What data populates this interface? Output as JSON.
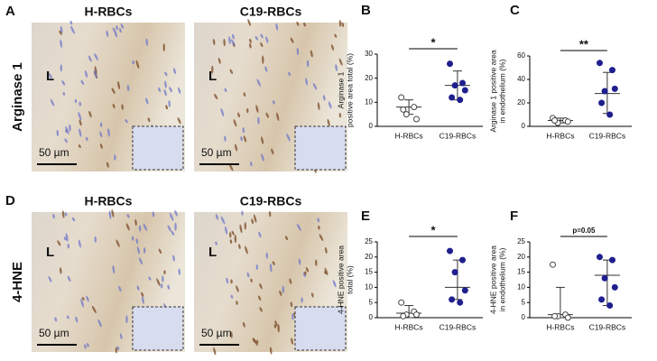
{
  "micrograph_rows": [
    {
      "letter": "A",
      "label": "Arginase 1",
      "images": [
        {
          "title": "H-RBCs",
          "lumen": "L",
          "scale_bar": "50 µm"
        },
        {
          "title": "C19-RBCs",
          "lumen": "L",
          "scale_bar": "50 µm"
        }
      ]
    },
    {
      "letter": "D",
      "label": "4-HNE",
      "images": [
        {
          "title": "H-RBCs",
          "lumen": "L",
          "scale_bar": "50 µm"
        },
        {
          "title": "C19-RBCs",
          "lumen": "L",
          "scale_bar": "50 µm"
        }
      ]
    }
  ],
  "chart_data": [
    {
      "type": "scatter",
      "panel": "B",
      "ylabel": [
        "Arginase 1",
        "positive area total (%)"
      ],
      "categories": [
        "H-RBCs",
        "C19-RBCs"
      ],
      "colors": [
        "#ffffff",
        "#1f1f8f"
      ],
      "groups": [
        {
          "values": [
            12,
            8,
            5,
            3,
            7
          ],
          "center": 8,
          "low": 5,
          "high": 11
        },
        {
          "values": [
            26,
            18,
            17,
            15,
            12,
            11
          ],
          "center": 17,
          "low": 11,
          "high": 23
        }
      ],
      "annotation": "*",
      "ylim": [
        0,
        30
      ],
      "yticks": [
        0,
        10,
        20,
        30
      ]
    },
    {
      "type": "scatter",
      "panel": "C",
      "ylabel": [
        "Arginase 1 positive area",
        "in endothelium (%)"
      ],
      "categories": [
        "H-RBCs",
        "C19-RBCs"
      ],
      "colors": [
        "#ffffff",
        "#1f1f8f"
      ],
      "groups": [
        {
          "values": [
            7,
            5,
            3,
            4,
            5
          ],
          "center": 5,
          "low": 3,
          "high": 7
        },
        {
          "values": [
            54,
            48,
            30,
            32,
            20,
            10
          ],
          "center": 28,
          "low": 11,
          "high": 46
        }
      ],
      "annotation": "**",
      "ylim": [
        0,
        60
      ],
      "yticks": [
        0,
        20,
        40,
        60
      ]
    },
    {
      "type": "scatter",
      "panel": "E",
      "ylabel": [
        "4-HNE positive area",
        "total (%)"
      ],
      "categories": [
        "H-RBCs",
        "C19-RBCs"
      ],
      "colors": [
        "#ffffff",
        "#1f1f8f"
      ],
      "groups": [
        {
          "values": [
            5,
            2,
            1,
            1,
            0.5
          ],
          "center": 1.5,
          "low": 0,
          "high": 4
        },
        {
          "values": [
            22,
            19,
            15,
            9,
            6,
            5
          ],
          "center": 10,
          "low": 6,
          "high": 19
        }
      ],
      "annotation": "*",
      "ylim": [
        0,
        25
      ],
      "yticks": [
        0,
        5,
        10,
        15,
        20,
        25
      ]
    },
    {
      "type": "scatter",
      "panel": "F",
      "ylabel": [
        "4-HNE positive area",
        "in endothelium (%)"
      ],
      "categories": [
        "H-RBCs",
        "C19-RBCs"
      ],
      "colors": [
        "#ffffff",
        "#1f1f8f"
      ],
      "groups": [
        {
          "values": [
            17.5,
            1,
            0.5,
            0,
            0.5
          ],
          "center": 1,
          "low": 0,
          "high": 10
        },
        {
          "values": [
            20,
            19,
            13,
            10,
            6,
            4
          ],
          "center": 14,
          "low": 4,
          "high": 19
        }
      ],
      "annotation": "p=0.05",
      "ylim": [
        0,
        25
      ],
      "yticks": [
        0,
        5,
        10,
        15,
        20,
        25
      ]
    }
  ]
}
